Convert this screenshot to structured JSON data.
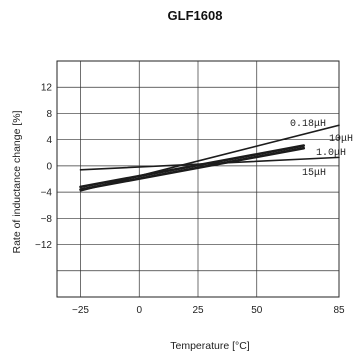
{
  "chart_data": {
    "type": "line",
    "title": "GLF1608",
    "xlabel": "Temperature [°C]",
    "ylabel": "Rate of inductance change [%]",
    "xlim": [
      -35,
      85
    ],
    "ylim": [
      -20,
      16
    ],
    "x_ticks": [
      "-25",
      "0",
      "25",
      "50",
      "85"
    ],
    "y_ticks": [
      "12",
      "8",
      "4",
      "0",
      "-4",
      "-8",
      "-12"
    ],
    "y_tick_values": [
      12,
      8,
      4,
      0,
      -4,
      -8,
      -12
    ],
    "grid": true,
    "series": [
      {
        "name": "0.18μH",
        "x": [
          -25,
          85
        ],
        "y": [
          -3.8,
          6.2
        ]
      },
      {
        "name": "10μH",
        "x": [
          -25,
          70
        ],
        "y": [
          -3.2,
          3.1
        ]
      },
      {
        "name": "1.0μH",
        "x": [
          -25,
          70
        ],
        "y": [
          -3.6,
          2.7
        ]
      },
      {
        "name": "15μH",
        "x": [
          -25,
          85
        ],
        "y": [
          -0.6,
          1.3
        ]
      }
    ]
  }
}
